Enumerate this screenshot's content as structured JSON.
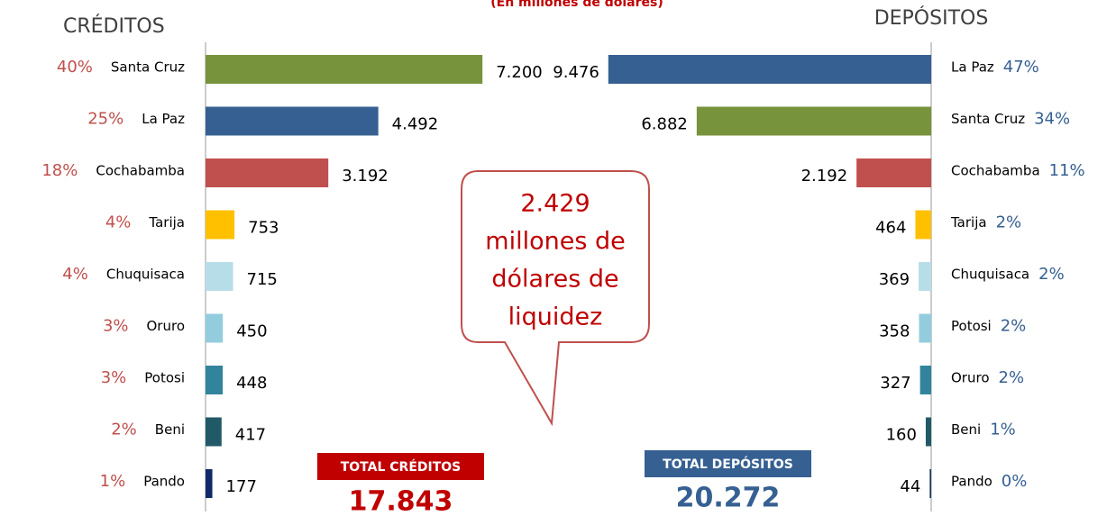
{
  "subtitle": "(En millones de dólares)",
  "annotation": [
    "2.429",
    "millones de",
    "dólares de",
    "liquidez"
  ],
  "chart_data": [
    {
      "type": "bar",
      "orientation": "horizontal",
      "x_reversed": false,
      "title": "CRÉDITOS",
      "categories": [
        "Santa Cruz",
        "La Paz",
        "Cochabamba",
        "Tarija",
        "Chuquisaca",
        "Oruro",
        "Potosi",
        "Beni",
        "Pando"
      ],
      "values": [
        7200,
        4492,
        3192,
        753,
        715,
        450,
        448,
        417,
        177
      ],
      "value_labels": [
        "7.200",
        "4.492",
        "3.192",
        "753",
        "715",
        "450",
        "448",
        "417",
        "177"
      ],
      "share_labels": [
        "40%",
        "25%",
        "18%",
        "4%",
        "4%",
        "3%",
        "3%",
        "2%",
        "1%"
      ],
      "share_color": "#c0504d",
      "colors": [
        "#77933c",
        "#366092",
        "#c0504d",
        "#ffc000",
        "#b7dee8",
        "#93cddd",
        "#31849b",
        "#215967",
        "#0f2a66"
      ],
      "xlim": [
        0,
        9000
      ],
      "total_title": "TOTAL CRÉDITOS",
      "total_label": "17.843",
      "total_color": "#c00000"
    },
    {
      "type": "bar",
      "orientation": "horizontal",
      "x_reversed": true,
      "title": "DEPÓSITOS",
      "categories": [
        "La Paz",
        "Santa Cruz",
        "Cochabamba",
        "Tarija",
        "Chuquisaca",
        "Potosi",
        "Oruro",
        "Beni",
        "Pando"
      ],
      "values": [
        9476,
        6882,
        2192,
        464,
        369,
        358,
        327,
        160,
        44
      ],
      "value_labels": [
        "9.476",
        "6.882",
        "2.192",
        "464",
        "369",
        "358",
        "327",
        "160",
        "44"
      ],
      "share_labels": [
        "47%",
        "34%",
        "11%",
        "2%",
        "2%",
        "2%",
        "2%",
        "1%",
        "0%"
      ],
      "share_color": "#366092",
      "colors": [
        "#366092",
        "#77933c",
        "#c0504d",
        "#ffc000",
        "#b7dee8",
        "#93cddd",
        "#31849b",
        "#215967",
        "#17375e"
      ],
      "xlim": [
        0,
        10000
      ],
      "total_title": "TOTAL DEPÓSITOS",
      "total_label": "20.272",
      "total_color": "#366092"
    }
  ]
}
